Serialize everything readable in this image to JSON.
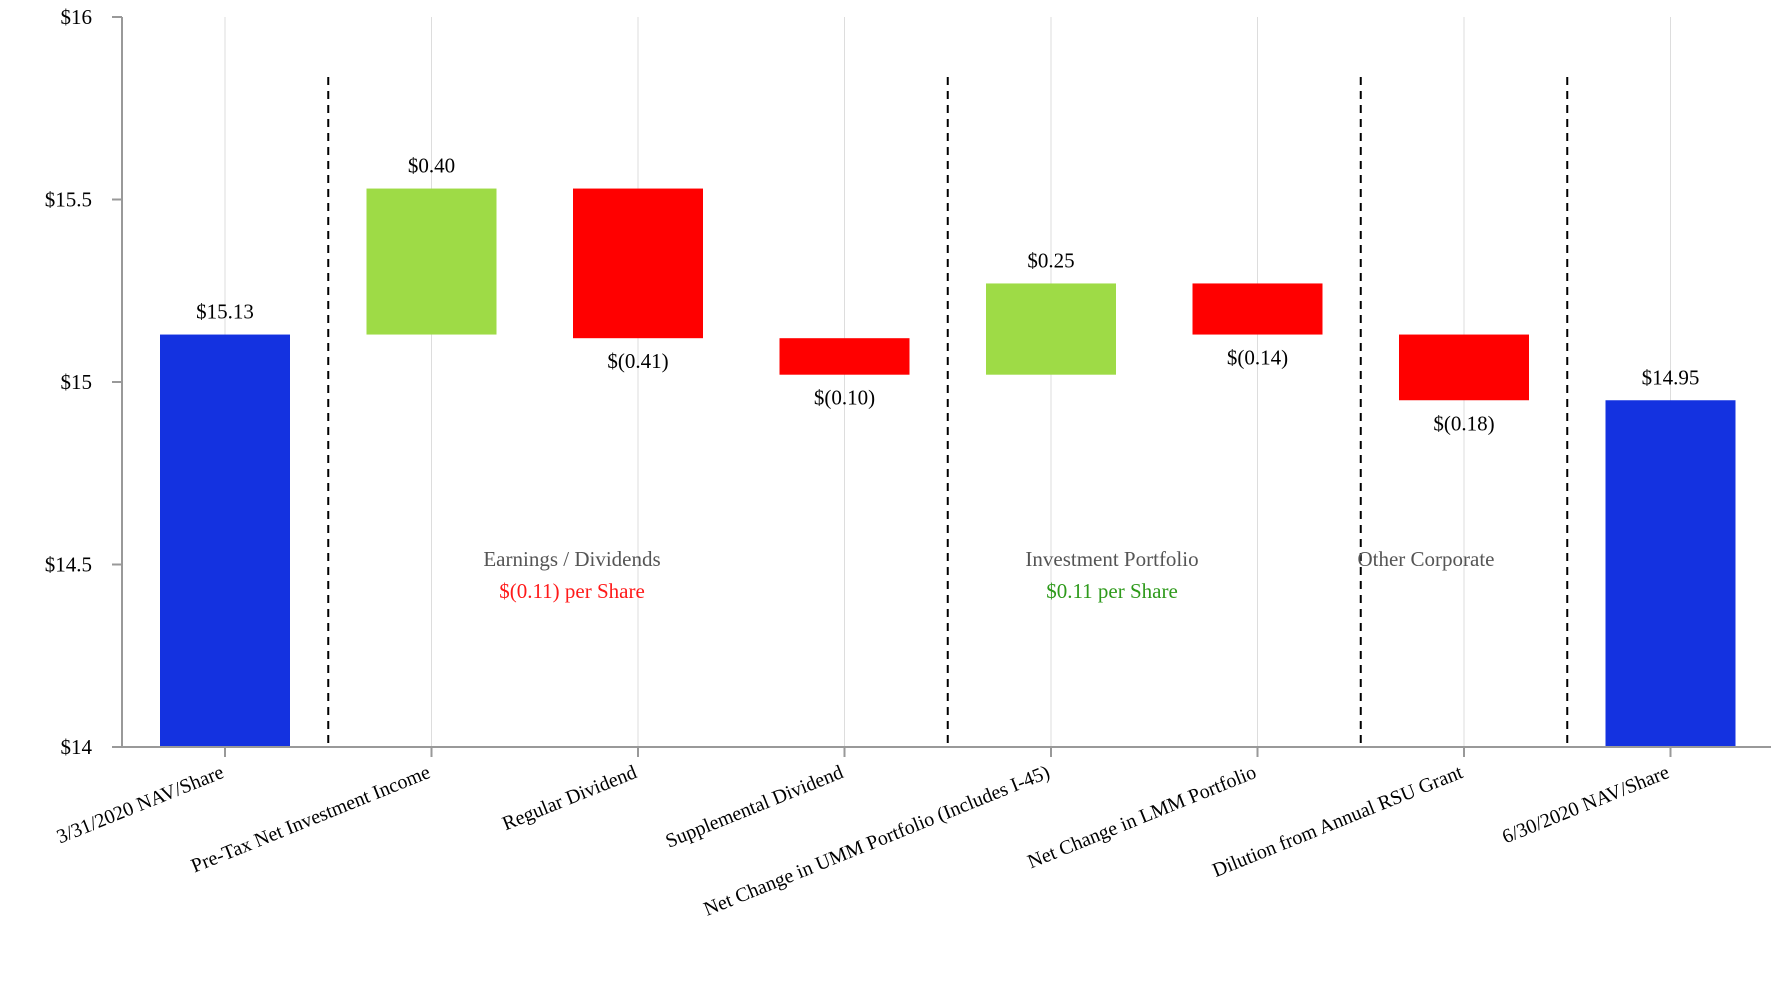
{
  "chart_data": {
    "type": "bar",
    "subtype": "waterfall",
    "title": "",
    "xlabel": "",
    "ylabel": "",
    "ylim": [
      14,
      16
    ],
    "yticks": [
      14,
      14.5,
      15,
      15.5,
      16
    ],
    "ytick_labels": [
      "$14",
      "$14.5",
      "$15",
      "$15.5",
      "$16"
    ],
    "grid": "vertical",
    "categories": [
      "3/31/2020 NAV/Share",
      "Pre-Tax Net Investment Income",
      "Regular Dividend",
      "Supplemental Dividend",
      "Net Change in UMM Portfolio (Includes I-45)",
      "Net Change in LMM Portfolio",
      "Dilution from Annual RSU Grant",
      "6/30/2020 NAV/Share"
    ],
    "bars": [
      {
        "kind": "total",
        "start": 14,
        "end": 15.13,
        "label": "$15.13"
      },
      {
        "kind": "increase",
        "start": 15.13,
        "end": 15.53,
        "label": "$0.40"
      },
      {
        "kind": "decrease",
        "start": 15.53,
        "end": 15.12,
        "label": "$(0.41)"
      },
      {
        "kind": "decrease",
        "start": 15.12,
        "end": 15.02,
        "label": "$(0.10)"
      },
      {
        "kind": "increase",
        "start": 15.02,
        "end": 15.27,
        "label": "$0.25"
      },
      {
        "kind": "decrease",
        "start": 15.27,
        "end": 15.13,
        "label": "$(0.14)"
      },
      {
        "kind": "decrease",
        "start": 15.13,
        "end": 14.95,
        "label": "$(0.18)"
      },
      {
        "kind": "total",
        "start": 14,
        "end": 14.95,
        "label": "$14.95"
      }
    ],
    "colors": {
      "total": "#1432e0",
      "increase": "#9edb46",
      "decrease": "#ff0000",
      "positive_text": "#2e9a1b",
      "negative_text": "#ff1a1a"
    },
    "sections": [
      {
        "title": "Earnings / Dividends",
        "subtitle": "$(0.11) per Share",
        "tone": "negative"
      },
      {
        "title": "Investment Portfolio",
        "subtitle": "$0.11 per Share",
        "tone": "positive"
      },
      {
        "title": "Other Corporate",
        "subtitle": "",
        "tone": "neutral"
      }
    ]
  }
}
